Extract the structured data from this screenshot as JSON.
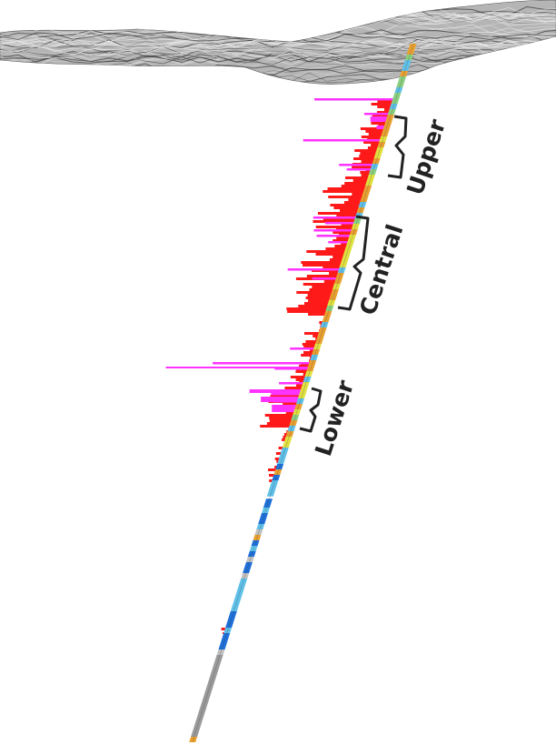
{
  "figure": {
    "zones": [
      {
        "key": "upper",
        "label": "Upper"
      },
      {
        "key": "central",
        "label": "Central"
      },
      {
        "key": "lower",
        "label": "Lower"
      }
    ]
  },
  "colors": {
    "background": "#ffffff",
    "terrain": "#8a8a8a",
    "histogram_primary": "#ff1a1a",
    "histogram_secondary": "#ff33ff",
    "bracket_and_text": "#222222",
    "core_default": "#9a9a9a",
    "core_palette": [
      "#1e6fd8",
      "#5fc0e8",
      "#e8a030",
      "#e0e040",
      "#8ad080",
      "#c0c0c0"
    ]
  }
}
